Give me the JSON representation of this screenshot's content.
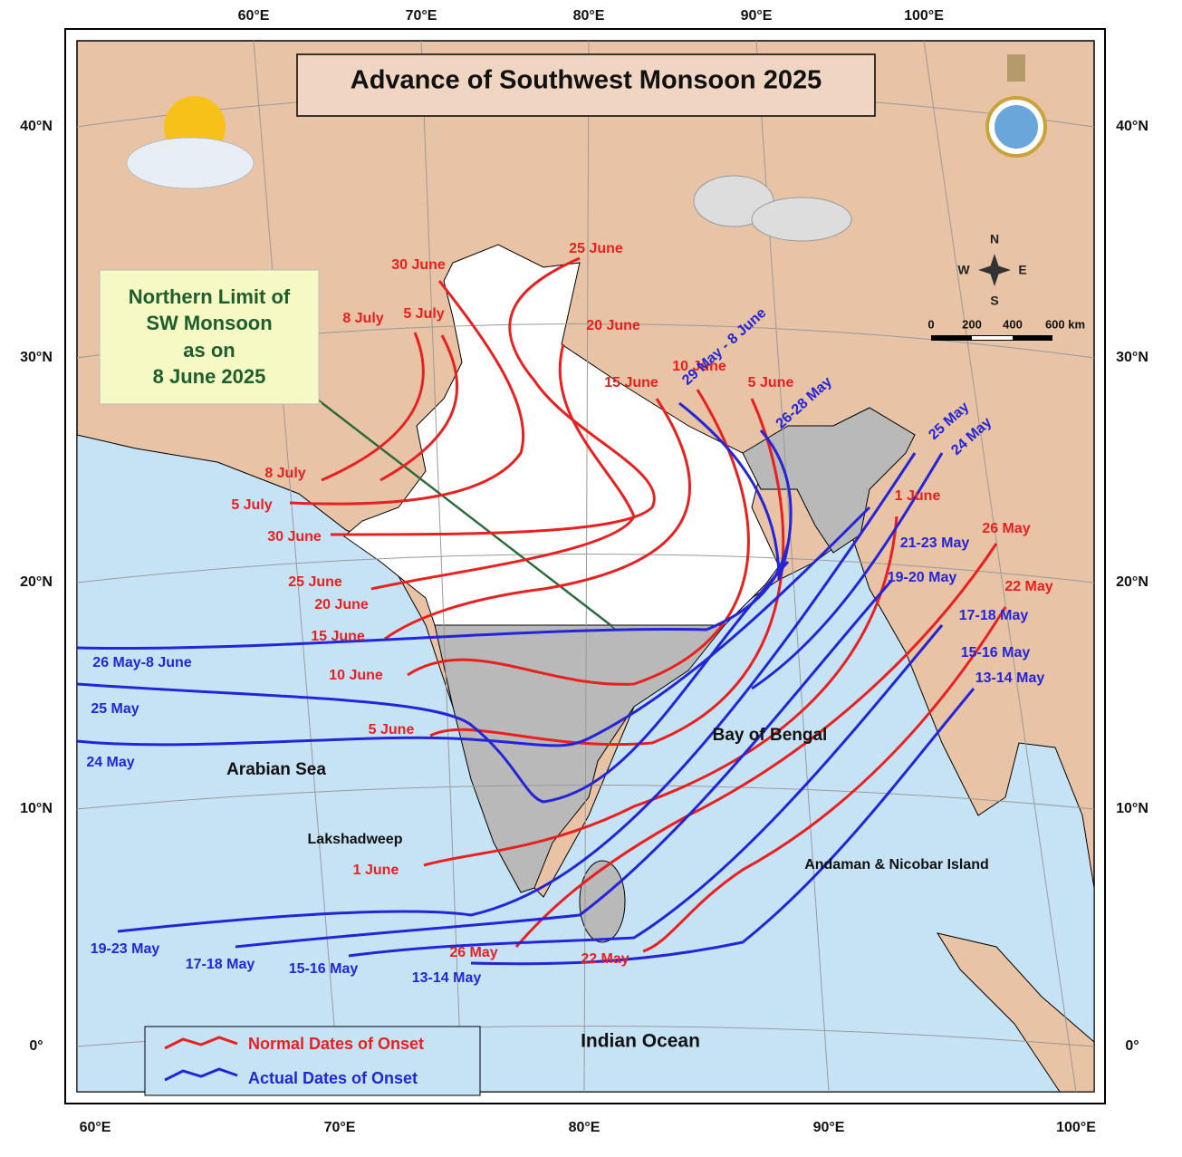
{
  "title": "Advance of Southwest Monsoon 2025",
  "note": [
    "Northern Limit of",
    "SW Monsoon",
    "as on",
    "8 June 2025"
  ],
  "lon_top": [
    "60°E",
    "70°E",
    "80°E",
    "90°E",
    "100°E"
  ],
  "lon_bottom": [
    "60°E",
    "70°E",
    "80°E",
    "90°E",
    "100°E"
  ],
  "lat_left": [
    "40°N",
    "30°N",
    "20°N",
    "10°N",
    "0°"
  ],
  "lat_right": [
    "40°N",
    "30°N",
    "20°N",
    "10°N",
    "0°"
  ],
  "scale": [
    "0",
    "200",
    "400",
    "600 km"
  ],
  "compass": [
    "N",
    "S",
    "E",
    "W"
  ],
  "legend": [
    "Normal Dates of Onset",
    "Actual Dates of Onset"
  ],
  "regions": [
    "Arabian Sea",
    "Bay of Bengal",
    "Lakshadweep",
    "Andaman & Nicobar Island",
    "Indian Ocean"
  ],
  "normal_labels": [
    "25 June",
    "30 June",
    "8 July",
    "5 July",
    "20 June",
    "15 June",
    "10 June",
    "5 June",
    "8 July",
    "5 July",
    "30 June",
    "25 June",
    "20 June",
    "15 June",
    "10 June",
    "5 June",
    "1 June",
    "1 June",
    "26 May",
    "22 May",
    "26 May",
    "22 May"
  ],
  "actual_labels": [
    "29 May - 8 June",
    "26-28 May",
    "25 May",
    "24 May",
    "21-23 May",
    "19-20 May",
    "17-18 May",
    "15-16 May",
    "13-14 May",
    "26 May-8 June",
    "25 May",
    "24 May",
    "19-23 May",
    "17-18  May",
    "15-16 May",
    "13-14  May"
  ]
}
